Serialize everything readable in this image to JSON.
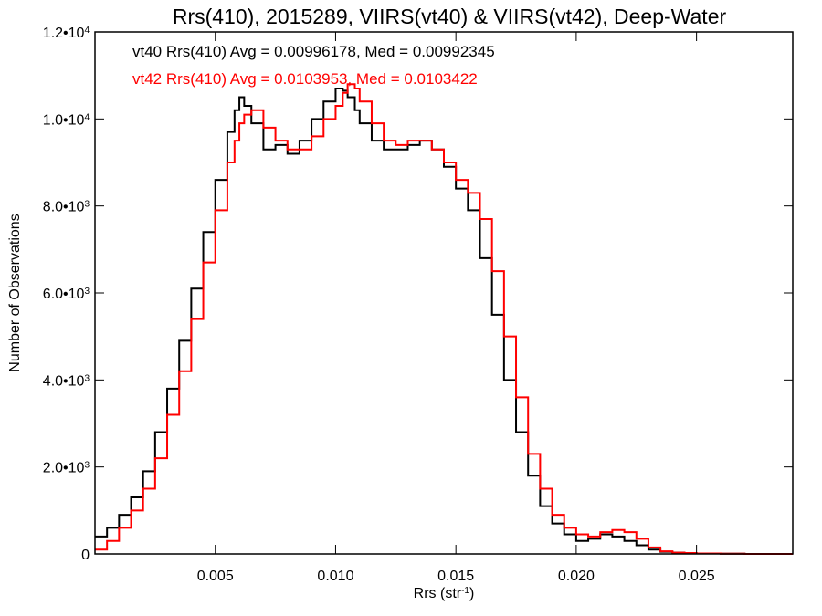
{
  "chart_data": {
    "type": "line",
    "title": "Rrs(410), 2015289, VIIRS(vt40) & VIIRS(vt42), Deep-Water",
    "xlabel": "Rrs (str",
    "xlabel_sup": "-1",
    "xlabel_end": ")",
    "ylabel": "Number of Observations",
    "xlim": [
      0.0,
      0.029
    ],
    "ylim": [
      0,
      12000
    ],
    "grid": false,
    "x_ticks": [
      {
        "value": 0.005,
        "label": "0.005"
      },
      {
        "value": 0.01,
        "label": "0.010"
      },
      {
        "value": 0.015,
        "label": "0.015"
      },
      {
        "value": 0.02,
        "label": "0.020"
      },
      {
        "value": 0.025,
        "label": "0.025"
      }
    ],
    "y_ticks": [
      {
        "value": 0,
        "mant": "0",
        "exp": ""
      },
      {
        "value": 2000,
        "mant": "2.0•10",
        "exp": "3"
      },
      {
        "value": 4000,
        "mant": "4.0•10",
        "exp": "3"
      },
      {
        "value": 6000,
        "mant": "6.0•10",
        "exp": "3"
      },
      {
        "value": 8000,
        "mant": "8.0•10",
        "exp": "3"
      },
      {
        "value": 10000,
        "mant": "1.0•10",
        "exp": "4"
      },
      {
        "value": 12000,
        "mant": "1.2•10",
        "exp": "4"
      }
    ],
    "annotations": [
      {
        "text": "vt40 Rrs(410) Avg = 0.00996178, Med = 0.00992345",
        "color": "#000000"
      },
      {
        "text": "vt42 Rrs(410) Avg = 0.0103953, Med = 0.0103422",
        "color": "#ff0000"
      }
    ],
    "series": [
      {
        "color": "#000000",
        "step": "post",
        "x": [
          0.0,
          0.0005,
          0.001,
          0.0015,
          0.002,
          0.0025,
          0.003,
          0.0035,
          0.004,
          0.0045,
          0.005,
          0.0055,
          0.0058,
          0.006,
          0.0062,
          0.0065,
          0.007,
          0.0075,
          0.008,
          0.0085,
          0.009,
          0.0095,
          0.01,
          0.0103,
          0.0105,
          0.0108,
          0.011,
          0.0115,
          0.012,
          0.0125,
          0.013,
          0.0135,
          0.014,
          0.0145,
          0.015,
          0.0155,
          0.016,
          0.0165,
          0.017,
          0.0175,
          0.018,
          0.0185,
          0.019,
          0.0195,
          0.02,
          0.0205,
          0.021,
          0.0215,
          0.022,
          0.0225,
          0.023,
          0.0235,
          0.024,
          0.0245,
          0.025,
          0.026,
          0.027,
          0.028,
          0.029
        ],
        "y": [
          400,
          600,
          900,
          1300,
          1900,
          2800,
          3800,
          4900,
          6100,
          7400,
          8600,
          9700,
          10200,
          10500,
          10300,
          9900,
          9300,
          9400,
          9200,
          9500,
          10000,
          10400,
          10700,
          10650,
          10500,
          10200,
          9900,
          9500,
          9300,
          9300,
          9400,
          9500,
          9300,
          8900,
          8400,
          7900,
          6800,
          5500,
          4000,
          2800,
          1800,
          1100,
          700,
          450,
          300,
          350,
          450,
          400,
          300,
          200,
          100,
          50,
          30,
          20,
          10,
          5,
          0,
          0,
          0
        ]
      },
      {
        "color": "#ff0000",
        "step": "post",
        "x": [
          0.0,
          0.0005,
          0.001,
          0.0015,
          0.002,
          0.0025,
          0.003,
          0.0035,
          0.004,
          0.0045,
          0.005,
          0.0055,
          0.0058,
          0.006,
          0.0062,
          0.0065,
          0.007,
          0.0075,
          0.008,
          0.0085,
          0.009,
          0.0095,
          0.01,
          0.0103,
          0.0105,
          0.0108,
          0.011,
          0.0115,
          0.012,
          0.0125,
          0.013,
          0.0135,
          0.014,
          0.0145,
          0.015,
          0.0155,
          0.016,
          0.0165,
          0.017,
          0.0175,
          0.018,
          0.0185,
          0.019,
          0.0195,
          0.02,
          0.0205,
          0.021,
          0.0215,
          0.022,
          0.0225,
          0.023,
          0.0235,
          0.024,
          0.0245,
          0.025,
          0.026,
          0.027,
          0.028,
          0.029
        ],
        "y": [
          100,
          300,
          600,
          1000,
          1500,
          2200,
          3200,
          4200,
          5400,
          6700,
          7900,
          9000,
          9500,
          9900,
          10100,
          10200,
          9800,
          9500,
          9300,
          9300,
          9600,
          10000,
          10300,
          10600,
          10800,
          10700,
          10400,
          9900,
          9500,
          9400,
          9500,
          9500,
          9300,
          9000,
          8600,
          8300,
          7700,
          6500,
          5000,
          3600,
          2300,
          1500,
          900,
          600,
          450,
          400,
          500,
          550,
          500,
          350,
          150,
          60,
          30,
          20,
          10,
          5,
          0,
          0,
          0
        ]
      }
    ]
  }
}
